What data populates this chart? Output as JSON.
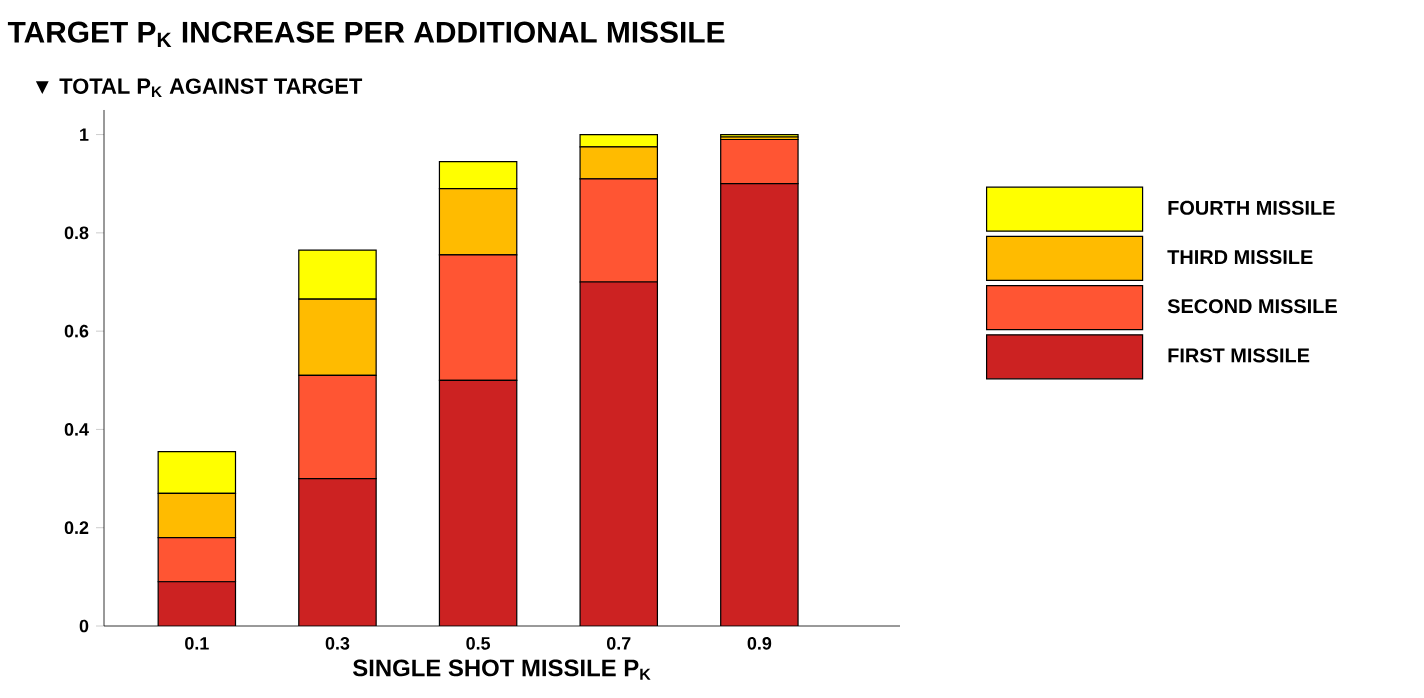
{
  "chart_data": {
    "type": "bar",
    "stacked": true,
    "title": "TARGET P$_{K}$ INCREASE PER ADDITIONAL MISSILE",
    "ylabel": "▼ TOTAL P$_{K}$ AGAINST TARGET",
    "xlabel": "SINGLE SHOT MISSILE P$_{K}$",
    "categories": [
      "0.1",
      "0.3",
      "0.5",
      "0.7",
      "0.9"
    ],
    "series": [
      {
        "name": "FIRST MISSILE",
        "color": "#cc2222",
        "values": [
          0.09,
          0.3,
          0.5,
          0.7,
          0.9
        ]
      },
      {
        "name": "SECOND MISSILE",
        "color": "#ff5533",
        "values": [
          0.09,
          0.21,
          0.255,
          0.21,
          0.09
        ]
      },
      {
        "name": "THIRD MISSILE",
        "color": "#ffbb00",
        "values": [
          0.09,
          0.155,
          0.135,
          0.065,
          0.005
        ]
      },
      {
        "name": "FOURTH MISSILE",
        "color": "#ffff00",
        "values": [
          0.085,
          0.1,
          0.055,
          0.025,
          0.005
        ]
      }
    ],
    "ylim": [
      0,
      1.05
    ],
    "yticks": [
      0,
      0.2,
      0.4,
      0.6,
      0.8,
      1
    ],
    "grid": false,
    "legend": "right"
  }
}
